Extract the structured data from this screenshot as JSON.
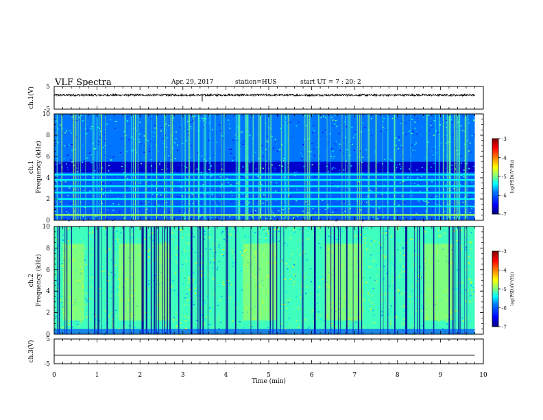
{
  "header": {
    "title": "VLF Spectra",
    "date": "Apr. 29, 2017",
    "station": "station=HUS",
    "start": "start UT =  7 : 20: 2"
  },
  "colors": {
    "frame": "#000000",
    "trace": "#000000",
    "colormap": [
      "#00007f",
      "#0000ff",
      "#007fff",
      "#00ffff",
      "#7fff7f",
      "#ffff00",
      "#ff7f00",
      "#ff0000",
      "#7f0000"
    ]
  },
  "chart_data": [
    {
      "type": "line",
      "panel": "ch1-waveform",
      "ylabel": "ch.1(V)",
      "ylim": [
        -5,
        5
      ],
      "yticks": [
        "5",
        "-5"
      ],
      "x_range_min": [
        0,
        10
      ],
      "data_extent_min": 9.8,
      "series": [
        {
          "values_V_approx": [
            1.2,
            1.2
          ]
        }
      ]
    },
    {
      "type": "heatmap",
      "panel": "ch1-spectrogram",
      "ylabel": "ch.1\nFrequency (kHz)",
      "ylim": [
        0,
        10
      ],
      "yticks": [
        "10",
        "8",
        "6",
        "4",
        "2",
        "0"
      ],
      "x_range_min": [
        0,
        10
      ],
      "data_extent_min": 9.8,
      "colorbar": {
        "label": "log(PSD)(V²/Hz)",
        "range": [
          -7,
          -3
        ],
        "ticks": [
          "-3",
          "-4",
          "-5",
          "-6",
          "-7"
        ]
      },
      "background_log_psd": {
        "0-4.5kHz": -6.0,
        "4.5-5.5kHz": -6.7,
        "5.5-10kHz": -5.8
      },
      "horizontal_lines_kHz": [
        0.5,
        1.3,
        2.0,
        2.6,
        3.2,
        3.8,
        4.3
      ]
    },
    {
      "type": "heatmap",
      "panel": "ch2-spectrogram",
      "ylabel": "ch.2\nFrequency (kHz)",
      "ylim": [
        0,
        10
      ],
      "yticks": [
        "10",
        "8",
        "6",
        "4",
        "2",
        "0"
      ],
      "x_range_min": [
        0,
        10
      ],
      "data_extent_min": 9.8,
      "colorbar": {
        "label": "log(PSD)(V²/Hz)",
        "range": [
          -7,
          -3
        ],
        "ticks": [
          "-3",
          "-4",
          "-5",
          "-6",
          "-7"
        ]
      },
      "background_log_psd": -5.2
    },
    {
      "type": "line",
      "panel": "ch3-waveform",
      "ylabel": "ch.3(V)",
      "ylim": [
        -5,
        5
      ],
      "yticks": [
        "5",
        "-5"
      ],
      "x_range_min": [
        0,
        10
      ],
      "data_extent_min": 9.8,
      "series": [
        {
          "values_V_approx": [
            -1.5,
            -1.5
          ]
        }
      ]
    }
  ],
  "axis": {
    "xlabel": "Time (min)",
    "xticks": [
      "0",
      "1",
      "2",
      "3",
      "4",
      "5",
      "6",
      "7",
      "8",
      "9",
      "10"
    ]
  }
}
